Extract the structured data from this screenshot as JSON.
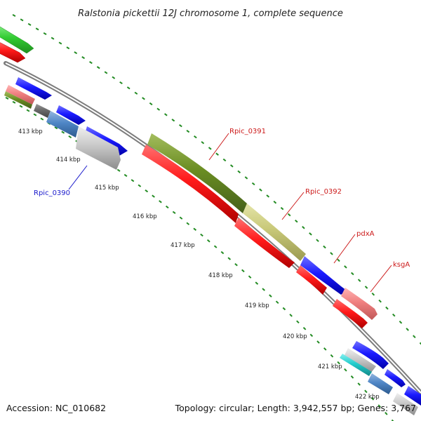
{
  "title": "Ralstonia pickettii 12J chromosome 1, complete sequence",
  "accession": "Accession: NC_010682",
  "topology": "Topology: circular; Length: 3,942,557 bp; Genes: 3,767",
  "kbp_labels": [
    "413 kbp",
    "414 kbp",
    "415 kbp",
    "416 kbp",
    "417 kbp",
    "418 kbp",
    "419 kbp",
    "420 kbp",
    "421 kbp",
    "422 kbp"
  ],
  "gene_labels": [
    {
      "text": "Rpic_0390",
      "color": "#1a1acc"
    },
    {
      "text": "Rpic_0391",
      "color": "#cc1a1a"
    },
    {
      "text": "Rpic_0392",
      "color": "#cc1a1a"
    },
    {
      "text": "pdxA",
      "color": "#cc1a1a"
    },
    {
      "text": "ksgA",
      "color": "#cc1a1a"
    }
  ],
  "colors": {
    "backbone": "#888888",
    "tick": "#228b22",
    "red": "#ff1a1a",
    "blue": "#1a1aff",
    "olive": "#6b8e23",
    "khaki": "#c8c878",
    "pink": "#f08080",
    "green": "#33cc33",
    "steel": "#4f86c6",
    "silver": "#c8c8c8",
    "cyan": "#22cccc"
  }
}
